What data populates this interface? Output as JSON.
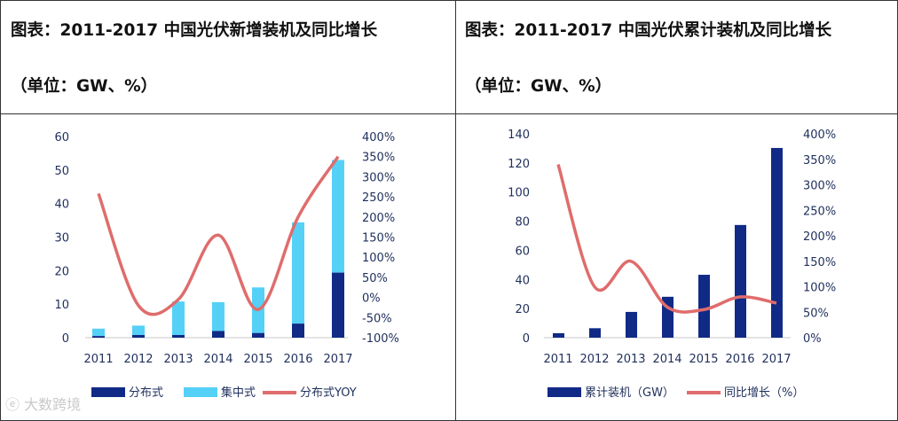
{
  "colors": {
    "dark_blue": "#102a86",
    "light_blue": "#55d1f7",
    "line_red": "#e06c6c",
    "axis_text": "#1f2f5c"
  },
  "chart_data": [
    {
      "type": "bar",
      "title": "图表：2011-2017 中国光伏新增装机及同比增长",
      "unit": "（单位：GW、%）",
      "categories": [
        "2011",
        "2012",
        "2013",
        "2014",
        "2015",
        "2016",
        "2017"
      ],
      "ylim": [
        0,
        60
      ],
      "yticks": [
        "60",
        "50",
        "40",
        "30",
        "20",
        "10",
        "0"
      ],
      "y2lim": [
        -100,
        400
      ],
      "y2ticks": [
        "400%",
        "350%",
        "300%",
        "250%",
        "200%",
        "150%",
        "100%",
        "50%",
        "0%",
        "-50%",
        "-100%"
      ],
      "stacked": true,
      "series": [
        {
          "name": "分布式",
          "kind": "bar",
          "values": [
            0.5,
            0.8,
            0.8,
            2.0,
            1.4,
            4.2,
            19.4
          ]
        },
        {
          "name": "集中式",
          "kind": "bar",
          "values": [
            2.2,
            2.8,
            10.0,
            8.6,
            13.6,
            30.2,
            33.6
          ]
        },
        {
          "name": "分布式YOY",
          "kind": "line",
          "axis": "right",
          "values": [
            258,
            -20,
            -5,
            155,
            -30,
            200,
            350
          ]
        }
      ]
    },
    {
      "type": "bar",
      "title": "图表：2011-2017 中国光伏累计装机及同比增长",
      "unit": "（单位：GW、%）",
      "categories": [
        "2011",
        "2012",
        "2013",
        "2014",
        "2015",
        "2016",
        "2017"
      ],
      "ylim": [
        0,
        140
      ],
      "yticks": [
        "140",
        "120",
        "100",
        "80",
        "60",
        "40",
        "20",
        "0"
      ],
      "y2lim": [
        0,
        400
      ],
      "y2ticks": [
        "400%",
        "350%",
        "300%",
        "250%",
        "200%",
        "150%",
        "100%",
        "50%",
        "0%"
      ],
      "series": [
        {
          "name": "累计装机（GW）",
          "kind": "bar",
          "values": [
            3.1,
            6.5,
            17.7,
            28.1,
            43.2,
            77.4,
            130.3
          ]
        },
        {
          "name": "同比增长（%）",
          "kind": "line",
          "axis": "right",
          "values": [
            340,
            100,
            150,
            60,
            55,
            80,
            68
          ]
        }
      ]
    }
  ],
  "watermark": "大数跨境"
}
